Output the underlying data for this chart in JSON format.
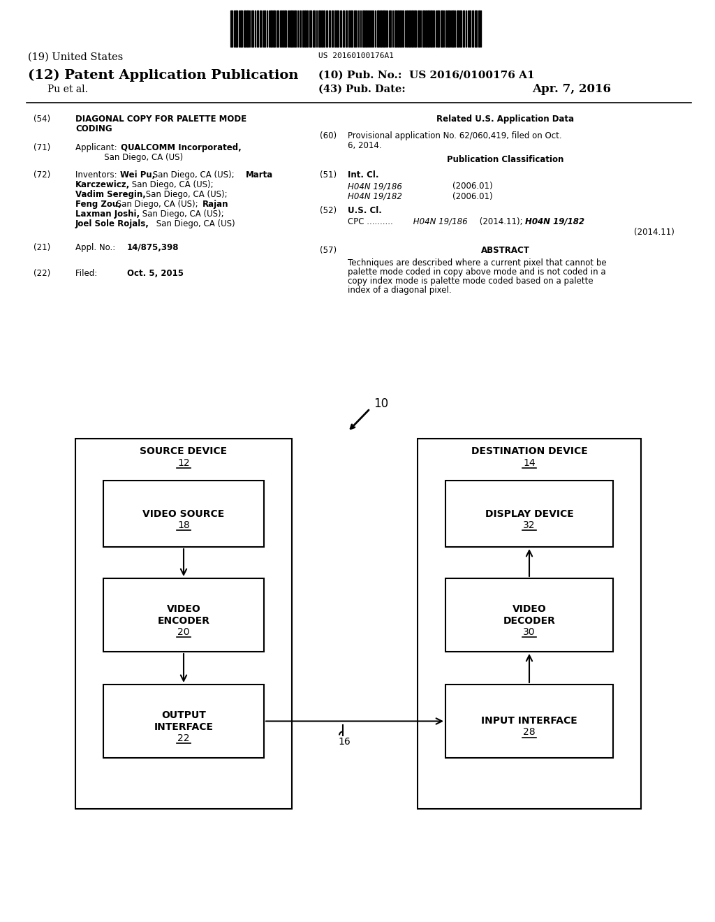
{
  "bg_color": "#ffffff",
  "barcode_text": "US 20160100176A1",
  "title_19": "(19) United States",
  "title_12": "(12) Patent Application Publication",
  "pub_no_label": "(10) Pub. No.:",
  "pub_no": "US 2016/0100176 A1",
  "inventor_label": "Pu et al.",
  "pub_date_label": "(43) Pub. Date:",
  "pub_date": "Apr. 7, 2016",
  "field54_label": "(54)",
  "field54_title_line1": "DIAGONAL COPY FOR PALETTE MODE",
  "field54_title_line2": "CODING",
  "field71_label": "(71)",
  "field72_label": "(72)",
  "field21_label": "(21)",
  "field21_bold": "14/875,398",
  "field22_label": "(22)",
  "field22_bold": "Oct. 5, 2015",
  "related_title": "Related U.S. Application Data",
  "field60_label": "(60)",
  "field60_text_line1": "Provisional application No. 62/060,419, filed on Oct.",
  "field60_text_line2": "6, 2014.",
  "pub_class_title": "Publication Classification",
  "field51_label": "(51)",
  "int_cl_1": "H04N 19/186",
  "int_cl_1_date": "(2006.01)",
  "int_cl_2": "H04N 19/182",
  "int_cl_2_date": "(2006.01)",
  "field52_label": "(52)",
  "cpc_line2": "(2014.11)",
  "field57_label": "(57)",
  "field57_title": "ABSTRACT",
  "abstract_line1": "Techniques are described where a current pixel that cannot be",
  "abstract_line2": "palette mode coded in copy above mode and is not coded in a",
  "abstract_line3": "copy index mode is palette mode coded based on a palette",
  "abstract_line4": "index of a diagonal pixel.",
  "diagram_label": "10",
  "src_device_label": "SOURCE DEVICE",
  "src_device_num": "12",
  "dst_device_label": "DESTINATION DEVICE",
  "dst_device_num": "14",
  "video_src_num": "18",
  "video_enc_num": "20",
  "output_if_num": "22",
  "display_dev_num": "32",
  "video_dec_num": "30",
  "input_if_num": "28",
  "channel_num": "16"
}
